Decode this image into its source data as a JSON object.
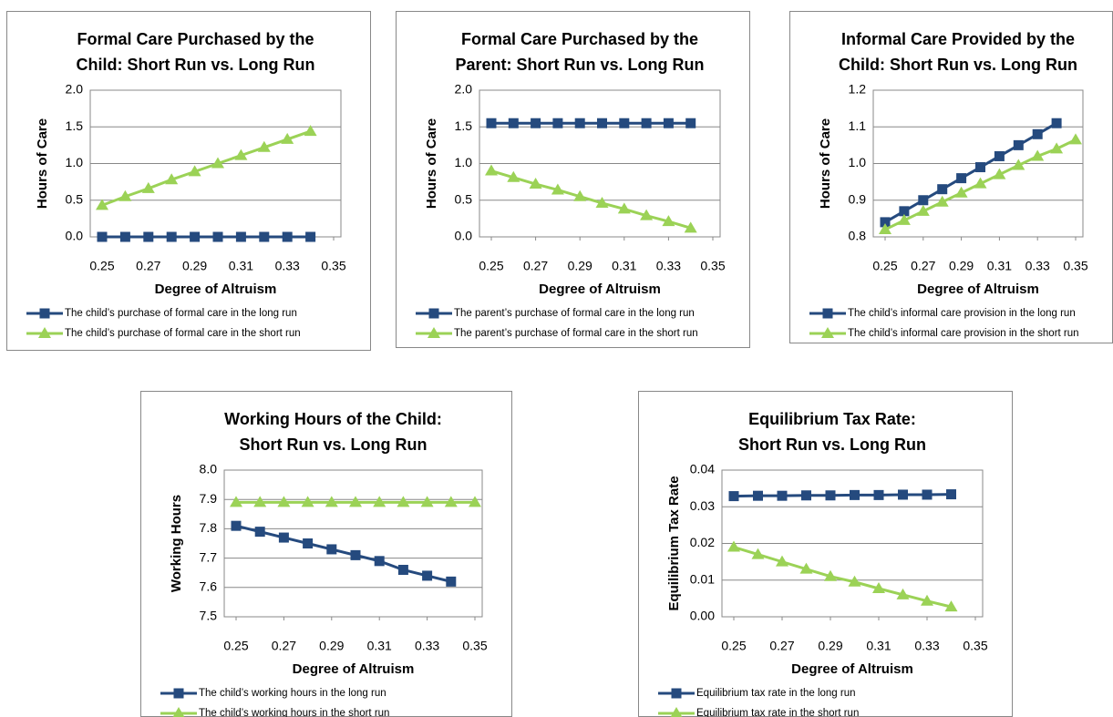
{
  "chart_data": [
    {
      "type": "line",
      "title": [
        "Formal Care Purchased by the",
        "Child: Short Run vs. Long Run"
      ],
      "x_label": "Degree of Altruism",
      "y_label": "Hours of Care",
      "xlim": [
        0.25,
        0.35
      ],
      "xticks": [
        0.25,
        0.27,
        0.29,
        0.31,
        0.33,
        0.35
      ],
      "ylim": [
        0,
        2
      ],
      "yticks": [
        {
          "value": 0,
          "label": "0.0"
        },
        0.5,
        {
          "value": 1,
          "label": "1.0"
        },
        1.5,
        {
          "value": 2,
          "label": "2.0"
        }
      ],
      "grid": true,
      "series": [
        {
          "name": "The child’s purchase of formal care in the long run",
          "color": "#254a7e",
          "marker": "square",
          "x": [
            0.25,
            0.26,
            0.27,
            0.28,
            0.29,
            0.3,
            0.31,
            0.32,
            0.33,
            0.34
          ],
          "values": [
            0,
            0,
            0,
            0,
            0,
            0,
            0,
            0,
            0,
            0
          ]
        },
        {
          "name": "The child’s purchase of formal care in the short run",
          "color": "#9bd256",
          "marker": "triangle",
          "x": [
            0.25,
            0.26,
            0.27,
            0.28,
            0.29,
            0.3,
            0.31,
            0.32,
            0.33,
            0.34
          ],
          "values": [
            0.43,
            0.55,
            0.66,
            0.78,
            0.89,
            1.0,
            1.11,
            1.22,
            1.33,
            1.44
          ]
        }
      ]
    },
    {
      "type": "line",
      "title": [
        "Formal Care Purchased by the",
        "Parent:  Short Run vs. Long Run"
      ],
      "x_label": "Degree of Altruism",
      "y_label": "Hours of Care",
      "xlim": [
        0.25,
        0.35
      ],
      "xticks": [
        0.25,
        0.27,
        0.29,
        0.31,
        0.33,
        0.35
      ],
      "ylim": [
        0,
        2
      ],
      "yticks": [
        {
          "value": 0,
          "label": "0.0"
        },
        0.5,
        {
          "value": 1,
          "label": "1.0"
        },
        1.5,
        {
          "value": 2,
          "label": "2.0"
        }
      ],
      "grid": true,
      "series": [
        {
          "name": "The parent’s purchase of formal care in the long run",
          "color": "#254a7e",
          "marker": "square",
          "x": [
            0.25,
            0.26,
            0.27,
            0.28,
            0.29,
            0.3,
            0.31,
            0.32,
            0.33,
            0.34
          ],
          "values": [
            1.55,
            1.55,
            1.55,
            1.55,
            1.55,
            1.55,
            1.55,
            1.55,
            1.55,
            1.55
          ]
        },
        {
          "name": "The parent’s purchase of formal care  in the short run",
          "color": "#9bd256",
          "marker": "triangle",
          "x": [
            0.25,
            0.26,
            0.27,
            0.28,
            0.29,
            0.3,
            0.31,
            0.32,
            0.33,
            0.34
          ],
          "values": [
            0.9,
            0.81,
            0.72,
            0.64,
            0.55,
            0.46,
            0.38,
            0.29,
            0.21,
            0.12
          ]
        }
      ]
    },
    {
      "type": "line",
      "title": [
        "Informal Care Provided by the",
        "Child: Short Run vs. Long Run"
      ],
      "x_label": "Degree of Altruism",
      "y_label": "Hours of Care",
      "xlim": [
        0.25,
        0.35
      ],
      "xticks": [
        0.25,
        0.27,
        0.29,
        0.31,
        0.33,
        0.35
      ],
      "ylim": [
        0.8,
        1.2
      ],
      "yticks": [
        0.8,
        0.9,
        {
          "value": 1,
          "label": "1.0"
        },
        1.1,
        1.2
      ],
      "grid": true,
      "series": [
        {
          "name": "The child’s informal care provision in the long run",
          "color": "#254a7e",
          "marker": "square",
          "x": [
            0.25,
            0.26,
            0.27,
            0.28,
            0.29,
            0.3,
            0.31,
            0.32,
            0.33,
            0.34
          ],
          "values": [
            0.84,
            0.87,
            0.9,
            0.93,
            0.96,
            0.99,
            1.02,
            1.05,
            1.08,
            1.11
          ]
        },
        {
          "name": "The child’s informal care provision in the short run",
          "color": "#9bd256",
          "marker": "triangle",
          "x": [
            0.25,
            0.26,
            0.27,
            0.28,
            0.29,
            0.3,
            0.31,
            0.32,
            0.33,
            0.34,
            0.35
          ],
          "values": [
            0.82,
            0.845,
            0.87,
            0.895,
            0.92,
            0.945,
            0.97,
            0.995,
            1.02,
            1.04,
            1.065
          ]
        }
      ]
    },
    {
      "type": "line",
      "title": [
        "Working Hours of the Child:",
        "Short Run vs. Long Run"
      ],
      "x_label": "Degree of Altruism",
      "y_label": "Working Hours",
      "xlim": [
        0.25,
        0.35
      ],
      "xticks": [
        0.25,
        0.27,
        0.29,
        0.31,
        0.33,
        0.35
      ],
      "ylim": [
        7.5,
        8
      ],
      "yticks": [
        7.5,
        7.6,
        7.7,
        7.8,
        7.9,
        {
          "value": 8,
          "label": "8.0"
        }
      ],
      "grid": true,
      "series": [
        {
          "name": "The child’s working hours in the long run",
          "color": "#254a7e",
          "marker": "square",
          "x": [
            0.25,
            0.26,
            0.27,
            0.28,
            0.29,
            0.3,
            0.31,
            0.32,
            0.33,
            0.34
          ],
          "values": [
            7.81,
            7.79,
            7.77,
            7.75,
            7.73,
            7.71,
            7.69,
            7.66,
            7.64,
            7.62
          ]
        },
        {
          "name": "The child’s working hours  in the short run",
          "color": "#9bd256",
          "marker": "triangle",
          "x": [
            0.25,
            0.26,
            0.27,
            0.28,
            0.29,
            0.3,
            0.31,
            0.32,
            0.33,
            0.34,
            0.35
          ],
          "values": [
            7.89,
            7.89,
            7.89,
            7.89,
            7.89,
            7.89,
            7.89,
            7.89,
            7.89,
            7.89,
            7.89
          ]
        }
      ]
    },
    {
      "type": "line",
      "title": [
        "Equilibrium Tax Rate:",
        "Short Run vs. Long Run"
      ],
      "x_label": "Degree of Altruism",
      "y_label": "Equilibrium Tax Rate",
      "xlim": [
        0.25,
        0.35
      ],
      "xticks": [
        0.25,
        0.27,
        0.29,
        0.31,
        0.33,
        0.35
      ],
      "ylim": [
        0,
        0.04
      ],
      "yticks": [
        {
          "value": 0,
          "label": "0.00"
        },
        {
          "value": 0.01,
          "label": "0.01"
        },
        {
          "value": 0.02,
          "label": "0.02"
        },
        {
          "value": 0.03,
          "label": "0.03"
        },
        {
          "value": 0.04,
          "label": "0.04"
        }
      ],
      "grid": true,
      "series": [
        {
          "name": "Equilibrium tax rate in the long run",
          "color": "#254a7e",
          "marker": "square",
          "x": [
            0.25,
            0.26,
            0.27,
            0.28,
            0.29,
            0.3,
            0.31,
            0.32,
            0.33,
            0.34
          ],
          "values": [
            0.0329,
            0.033,
            0.033,
            0.0331,
            0.0331,
            0.0332,
            0.0332,
            0.0333,
            0.0333,
            0.0334
          ]
        },
        {
          "name": "Equilibrium tax rate in the short run",
          "color": "#9bd256",
          "marker": "triangle",
          "x": [
            0.25,
            0.26,
            0.27,
            0.28,
            0.29,
            0.3,
            0.31,
            0.32,
            0.33,
            0.34
          ],
          "values": [
            0.019,
            0.017,
            0.015,
            0.013,
            0.011,
            0.0095,
            0.0077,
            0.006,
            0.0043,
            0.0027
          ]
        }
      ]
    }
  ]
}
